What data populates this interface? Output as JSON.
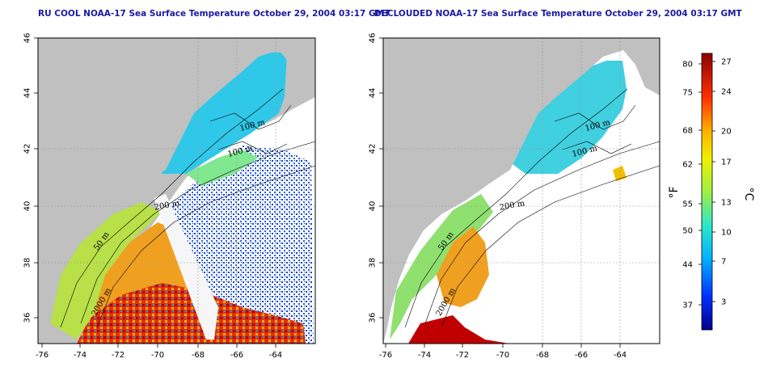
{
  "titles": {
    "left": "RU COOL NOAA-17 Sea Surface Temperature October 29, 2004 03:17 GMT",
    "right": "DECLOUDED NOAA-17 Sea Surface Temperature October 29, 2004 03:17 GMT"
  },
  "map": {
    "lon_ticks": [
      "-76",
      "-74",
      "-72",
      "-70",
      "-68",
      "-66",
      "-64"
    ],
    "lat_ticks": [
      "46",
      "44",
      "42",
      "40",
      "38",
      "36"
    ],
    "contour_labels": [
      "100 m",
      "100 m",
      "200 m",
      "50 m",
      "2000 m"
    ],
    "colors": {
      "land": "#c0c0c0",
      "nodata": "#ffffff",
      "title": "#1a1aa0"
    }
  },
  "colorbar": {
    "fahrenheit_ticks": [
      "80",
      "75",
      "68",
      "62",
      "55",
      "50",
      "44",
      "37"
    ],
    "celsius_ticks": [
      "27",
      "24",
      "20",
      "17",
      "13",
      "10",
      "7",
      "3"
    ],
    "fahrenheit_unit": "°F",
    "celsius_unit": "°C"
  }
}
